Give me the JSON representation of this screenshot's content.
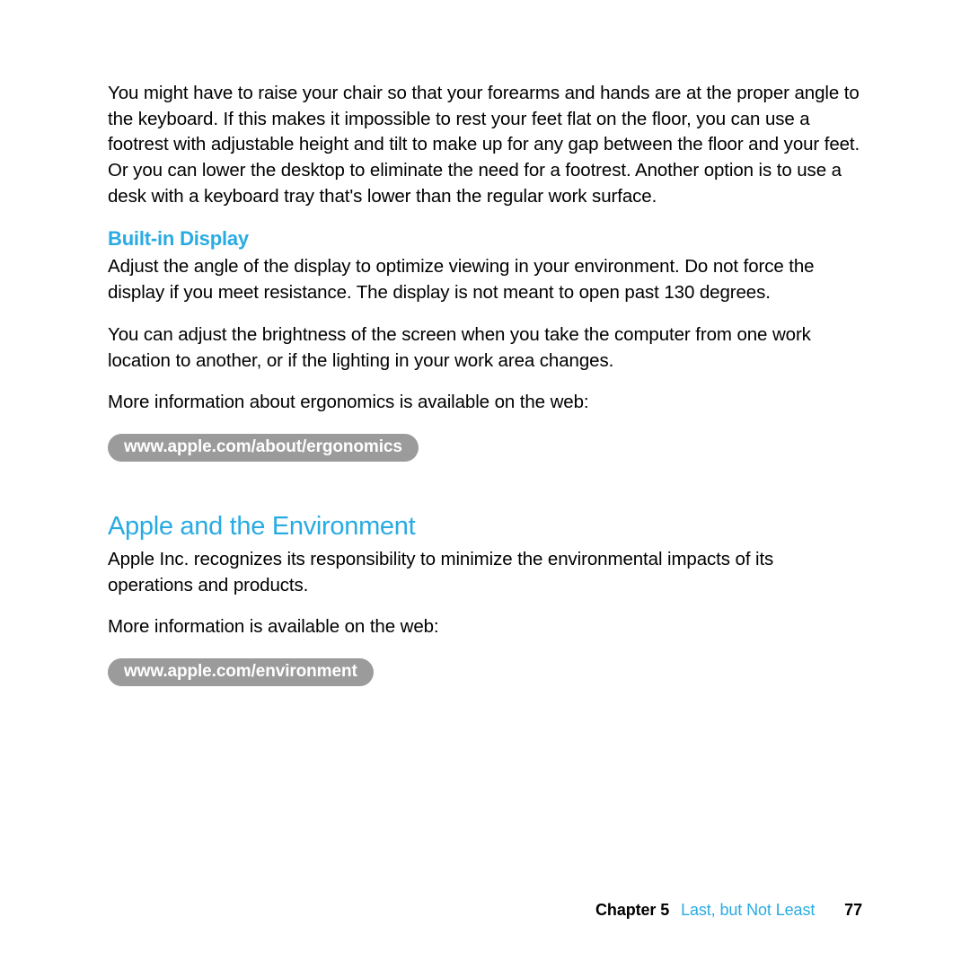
{
  "colors": {
    "heading_blue": "#29abe2",
    "pill_bg": "#9b9b9b",
    "pill_text": "#ffffff",
    "body_text": "#000000",
    "background": "#ffffff"
  },
  "typography": {
    "body_fontsize": 20.5,
    "subheading_fontsize": 22,
    "section_heading_fontsize": 29,
    "pill_fontsize": 19,
    "footer_fontsize": 18
  },
  "content": {
    "intro_paragraph": "You might have to raise your chair so that your forearms and hands are at the proper angle to the keyboard. If this makes it impossible to rest your feet flat on the floor, you can use a footrest with adjustable height and tilt to make up for any gap between the floor and your feet. Or you can lower the desktop to eliminate the need for a footrest. Another option is to use a desk with a keyboard tray that's lower than the regular work surface.",
    "display_heading": "Built-in Display",
    "display_p1": "Adjust the angle of the display to optimize viewing in your environment. Do not force the display if you meet resistance. The display is not meant to open past 130 degrees.",
    "display_p2": "You can adjust the brightness of the screen when you take the computer from one work location to another, or if the lighting in your work area changes.",
    "ergonomics_more_info": "More information about ergonomics is available on the web:",
    "ergonomics_url": "www.apple.com/about/ergonomics",
    "environment_heading": "Apple and the Environment",
    "environment_p1": "Apple Inc. recognizes its responsibility to minimize the environmental impacts of its operations and products.",
    "environment_more_info": "More information is available on the web:",
    "environment_url": "www.apple.com/environment"
  },
  "footer": {
    "chapter_label": "Chapter 5",
    "chapter_title": "Last, but Not Least",
    "page_number": "77"
  }
}
